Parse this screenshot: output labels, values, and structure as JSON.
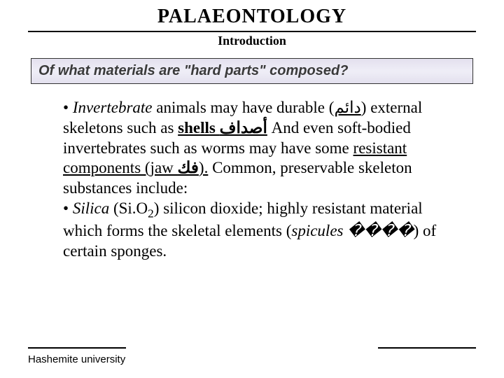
{
  "title": "PALAEONTOLOGY",
  "subtitle": "Introduction",
  "question": "Of what materials are \"hard parts\" composed?",
  "body": {
    "bullet": "•",
    "t1a": "Invertebrate",
    "t1b": " animals may have durable (",
    "t1c": "دائم",
    "t1d": ") external skeletons such as ",
    "t1e": "shells ",
    "t1f": "أصداف",
    "t1g": " And even soft-bodied invertebrates such as worms may have some ",
    "t1h": "resistant components (jaw ",
    "t1i": "فك",
    "t1j": ").",
    "t2": " Common, preservable skeleton substances include:",
    "t3a": "Silica",
    "t3b": " (Si.O",
    "t3b_sub": "2",
    "t3c": ") silicon dioxide; highly resistant material which forms the skeletal elements (",
    "t3d": "spicules ",
    "t3e": "����",
    "t3f": ") of certain sponges."
  },
  "footer": "Hashemite university",
  "colors": {
    "text": "#000000",
    "question_text": "#3a3a3a",
    "box_bg_top": "#e3e0ee"
  }
}
